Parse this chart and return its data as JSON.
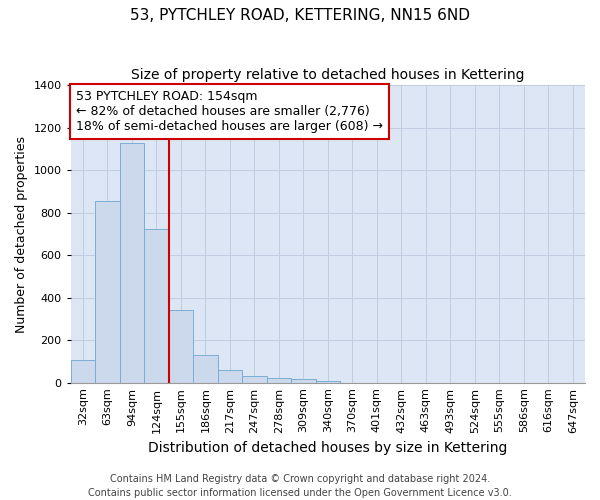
{
  "title": "53, PYTCHLEY ROAD, KETTERING, NN15 6ND",
  "subtitle": "Size of property relative to detached houses in Kettering",
  "xlabel": "Distribution of detached houses by size in Kettering",
  "ylabel": "Number of detached properties",
  "categories": [
    "32sqm",
    "63sqm",
    "94sqm",
    "124sqm",
    "155sqm",
    "186sqm",
    "217sqm",
    "247sqm",
    "278sqm",
    "309sqm",
    "340sqm",
    "370sqm",
    "401sqm",
    "432sqm",
    "463sqm",
    "493sqm",
    "524sqm",
    "555sqm",
    "586sqm",
    "616sqm",
    "647sqm"
  ],
  "values": [
    105,
    855,
    1130,
    725,
    340,
    130,
    60,
    32,
    20,
    15,
    10,
    0,
    0,
    0,
    0,
    0,
    0,
    0,
    0,
    0,
    0
  ],
  "bar_color": "#ccd9ed",
  "bar_edge_color": "#7badd4",
  "vline_color": "#cc0000",
  "vline_x": 3.5,
  "annotation_text": "53 PYTCHLEY ROAD: 154sqm\n← 82% of detached houses are smaller (2,776)\n18% of semi-detached houses are larger (608) →",
  "annotation_box_facecolor": "#ffffff",
  "annotation_box_edgecolor": "#cc0000",
  "ylim": [
    0,
    1400
  ],
  "yticks": [
    0,
    200,
    400,
    600,
    800,
    1000,
    1200,
    1400
  ],
  "grid_color": "#c0cce0",
  "plot_bg_color": "#dce6f5",
  "fig_bg_color": "#ffffff",
  "footer1": "Contains HM Land Registry data © Crown copyright and database right 2024.",
  "footer2": "Contains public sector information licensed under the Open Government Licence v3.0.",
  "title_fontsize": 11,
  "subtitle_fontsize": 10,
  "xlabel_fontsize": 10,
  "ylabel_fontsize": 9,
  "tick_fontsize": 8,
  "annotation_fontsize": 9,
  "footer_fontsize": 7
}
